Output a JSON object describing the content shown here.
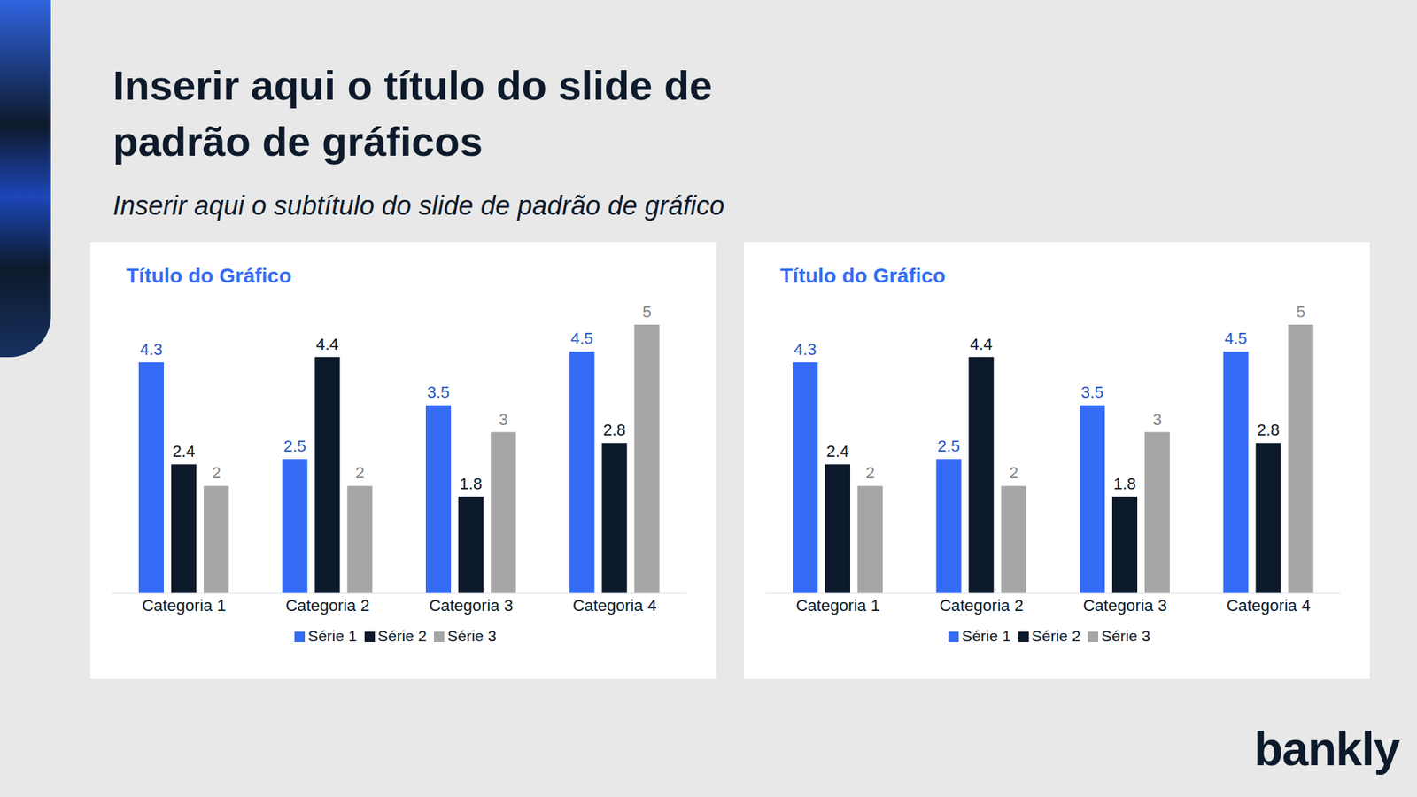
{
  "title": "Inserir aqui o título do slide de padrão de gráficos",
  "subtitle": "Inserir aqui o subtítulo do slide de padrão de gráfico",
  "logo": "bankly",
  "chart_data": [
    {
      "type": "bar",
      "title": "Título do Gráfico",
      "categories": [
        "Categoria 1",
        "Categoria 2",
        "Categoria 3",
        "Categoria 4"
      ],
      "series": [
        {
          "name": "Série 1",
          "color": "#356cf5",
          "values": [
            4.3,
            2.5,
            3.5,
            4.5
          ]
        },
        {
          "name": "Série 2",
          "color": "#0d1a2b",
          "values": [
            2.4,
            4.4,
            1.8,
            2.8
          ]
        },
        {
          "name": "Série 3",
          "color": "#a6a6a6",
          "values": [
            2,
            2,
            3,
            5
          ]
        }
      ],
      "ylim": [
        0,
        5
      ],
      "data_labels": true,
      "legend": "bottom",
      "tick_labels": "x",
      "grid": false
    },
    {
      "type": "bar",
      "title": "Título do Gráfico",
      "categories": [
        "Categoria 1",
        "Categoria 2",
        "Categoria 3",
        "Categoria 4"
      ],
      "series": [
        {
          "name": "Série 1",
          "color": "#356cf5",
          "values": [
            4.3,
            2.5,
            3.5,
            4.5
          ]
        },
        {
          "name": "Série 2",
          "color": "#0d1a2b",
          "values": [
            2.4,
            4.4,
            1.8,
            2.8
          ]
        },
        {
          "name": "Série 3",
          "color": "#a6a6a6",
          "values": [
            2,
            2,
            3,
            5
          ]
        }
      ],
      "ylim": [
        0,
        5
      ],
      "data_labels": true,
      "legend": "bottom",
      "tick_labels": "x",
      "grid": false
    }
  ]
}
